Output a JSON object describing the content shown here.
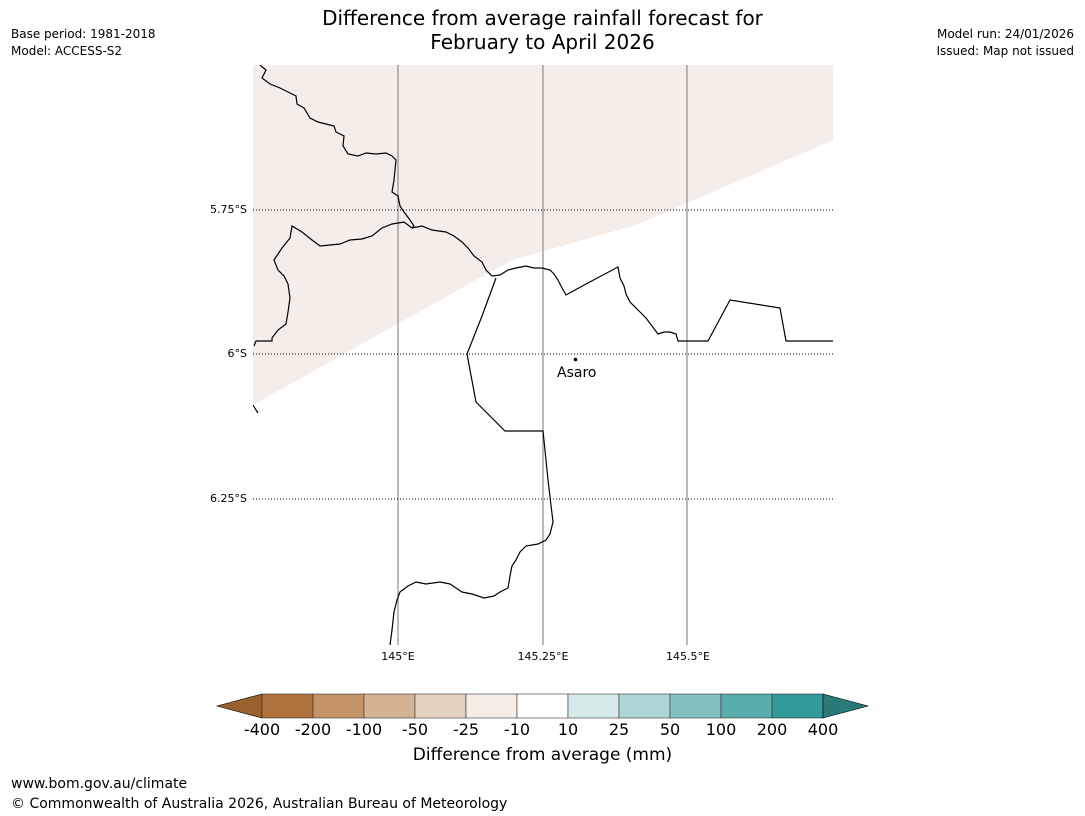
{
  "title": {
    "line1": "Difference from average rainfall forecast for",
    "line2": "February to April 2026"
  },
  "meta_left": {
    "base_period": "Base period: 1981-2018",
    "model": "Model: ACCESS-S2"
  },
  "meta_right": {
    "model_run": "Model run: 24/01/2026",
    "issued": "Issued: Map not issued"
  },
  "map": {
    "latitude_labels": [
      "5.75°S",
      "6°S",
      "6.25°S"
    ],
    "longitude_labels": [
      "145°E",
      "145.25°E",
      "145.5°E"
    ],
    "place_label": "Asaro",
    "shading_color": "#f4ede8"
  },
  "colorbar": {
    "title": "Difference from average (mm)",
    "tick_labels": [
      "-400",
      "-200",
      "-100",
      "-50",
      "-25",
      "-10",
      "10",
      "25",
      "50",
      "100",
      "200",
      "400"
    ],
    "colors": {
      "under": "#99612b",
      "bins": [
        "#ae733a",
        "#c49468",
        "#d4b392",
        "#e5d1bf",
        "#f4ede8",
        "#ffffff",
        "#d6e9e9",
        "#acd6d6",
        "#82c1bf",
        "#58aeab",
        "#329a98"
      ],
      "over": "#2a7b77"
    }
  },
  "footer": {
    "url": "www.bom.gov.au/climate",
    "copyright": "© Commonwealth of Australia 2026, Australian Bureau of Meteorology"
  }
}
